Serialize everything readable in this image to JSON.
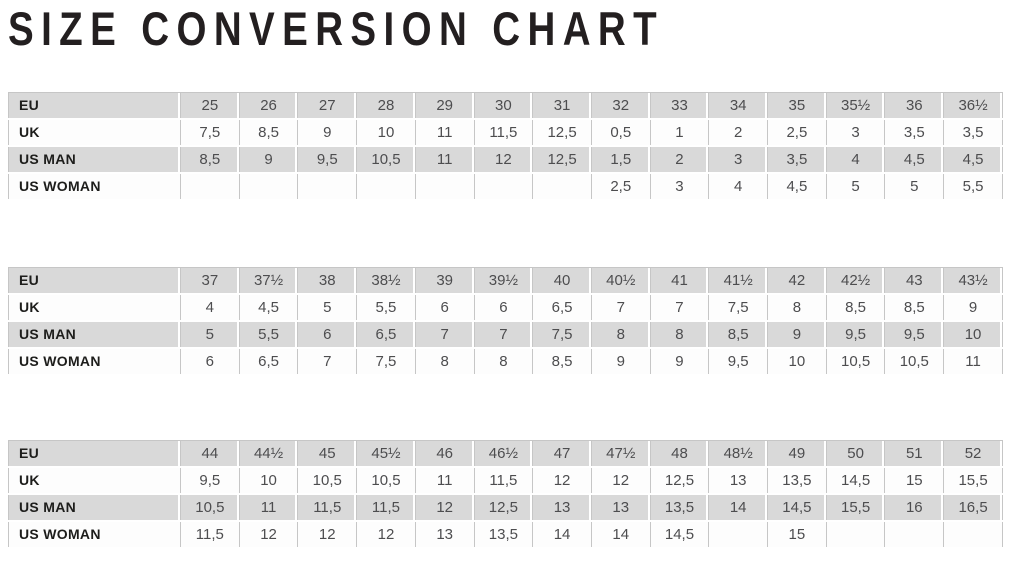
{
  "title": "SIZE CONVERSION CHART",
  "colors": {
    "title_text": "#231f20",
    "row_shaded_bg": "#d9d9d9",
    "row_plain_bg": "#fdfdfd",
    "grid_border": "#c6c6c6",
    "label_text": "#1d1d1b",
    "value_text": "#4d4d4f"
  },
  "tables": [
    {
      "rows": [
        {
          "label": "EU",
          "values": [
            "25",
            "26",
            "27",
            "28",
            "29",
            "30",
            "31",
            "32",
            "33",
            "34",
            "35",
            "35½",
            "36",
            "36½"
          ]
        },
        {
          "label": "UK",
          "values": [
            "7,5",
            "8,5",
            "9",
            "10",
            "11",
            "11,5",
            "12,5",
            "0,5",
            "1",
            "2",
            "2,5",
            "3",
            "3,5",
            "3,5"
          ]
        },
        {
          "label": "US MAN",
          "values": [
            "8,5",
            "9",
            "9,5",
            "10,5",
            "11",
            "12",
            "12,5",
            "1,5",
            "2",
            "3",
            "3,5",
            "4",
            "4,5",
            "4,5"
          ]
        },
        {
          "label": "US WOMAN",
          "values": [
            "",
            "",
            "",
            "",
            "",
            "",
            "",
            "2,5",
            "3",
            "4",
            "4,5",
            "5",
            "5",
            "5,5"
          ]
        }
      ]
    },
    {
      "rows": [
        {
          "label": "EU",
          "values": [
            "37",
            "37½",
            "38",
            "38½",
            "39",
            "39½",
            "40",
            "40½",
            "41",
            "41½",
            "42",
            "42½",
            "43",
            "43½"
          ]
        },
        {
          "label": "UK",
          "values": [
            "4",
            "4,5",
            "5",
            "5,5",
            "6",
            "6",
            "6,5",
            "7",
            "7",
            "7,5",
            "8",
            "8,5",
            "8,5",
            "9"
          ]
        },
        {
          "label": "US MAN",
          "values": [
            "5",
            "5,5",
            "6",
            "6,5",
            "7",
            "7",
            "7,5",
            "8",
            "8",
            "8,5",
            "9",
            "9,5",
            "9,5",
            "10"
          ]
        },
        {
          "label": "US WOMAN",
          "values": [
            "6",
            "6,5",
            "7",
            "7,5",
            "8",
            "8",
            "8,5",
            "9",
            "9",
            "9,5",
            "10",
            "10,5",
            "10,5",
            "11"
          ]
        }
      ]
    },
    {
      "rows": [
        {
          "label": "EU",
          "values": [
            "44",
            "44½",
            "45",
            "45½",
            "46",
            "46½",
            "47",
            "47½",
            "48",
            "48½",
            "49",
            "50",
            "51",
            "52"
          ]
        },
        {
          "label": "UK",
          "values": [
            "9,5",
            "10",
            "10,5",
            "10,5",
            "11",
            "11,5",
            "12",
            "12",
            "12,5",
            "13",
            "13,5",
            "14,5",
            "15",
            "15,5"
          ]
        },
        {
          "label": "US MAN",
          "values": [
            "10,5",
            "11",
            "11,5",
            "11,5",
            "12",
            "12,5",
            "13",
            "13",
            "13,5",
            "14",
            "14,5",
            "15,5",
            "16",
            "16,5"
          ]
        },
        {
          "label": "US WOMAN",
          "values": [
            "11,5",
            "12",
            "12",
            "12",
            "13",
            "13,5",
            "14",
            "14",
            "14,5",
            "",
            "15",
            "",
            "",
            ""
          ]
        }
      ]
    }
  ]
}
